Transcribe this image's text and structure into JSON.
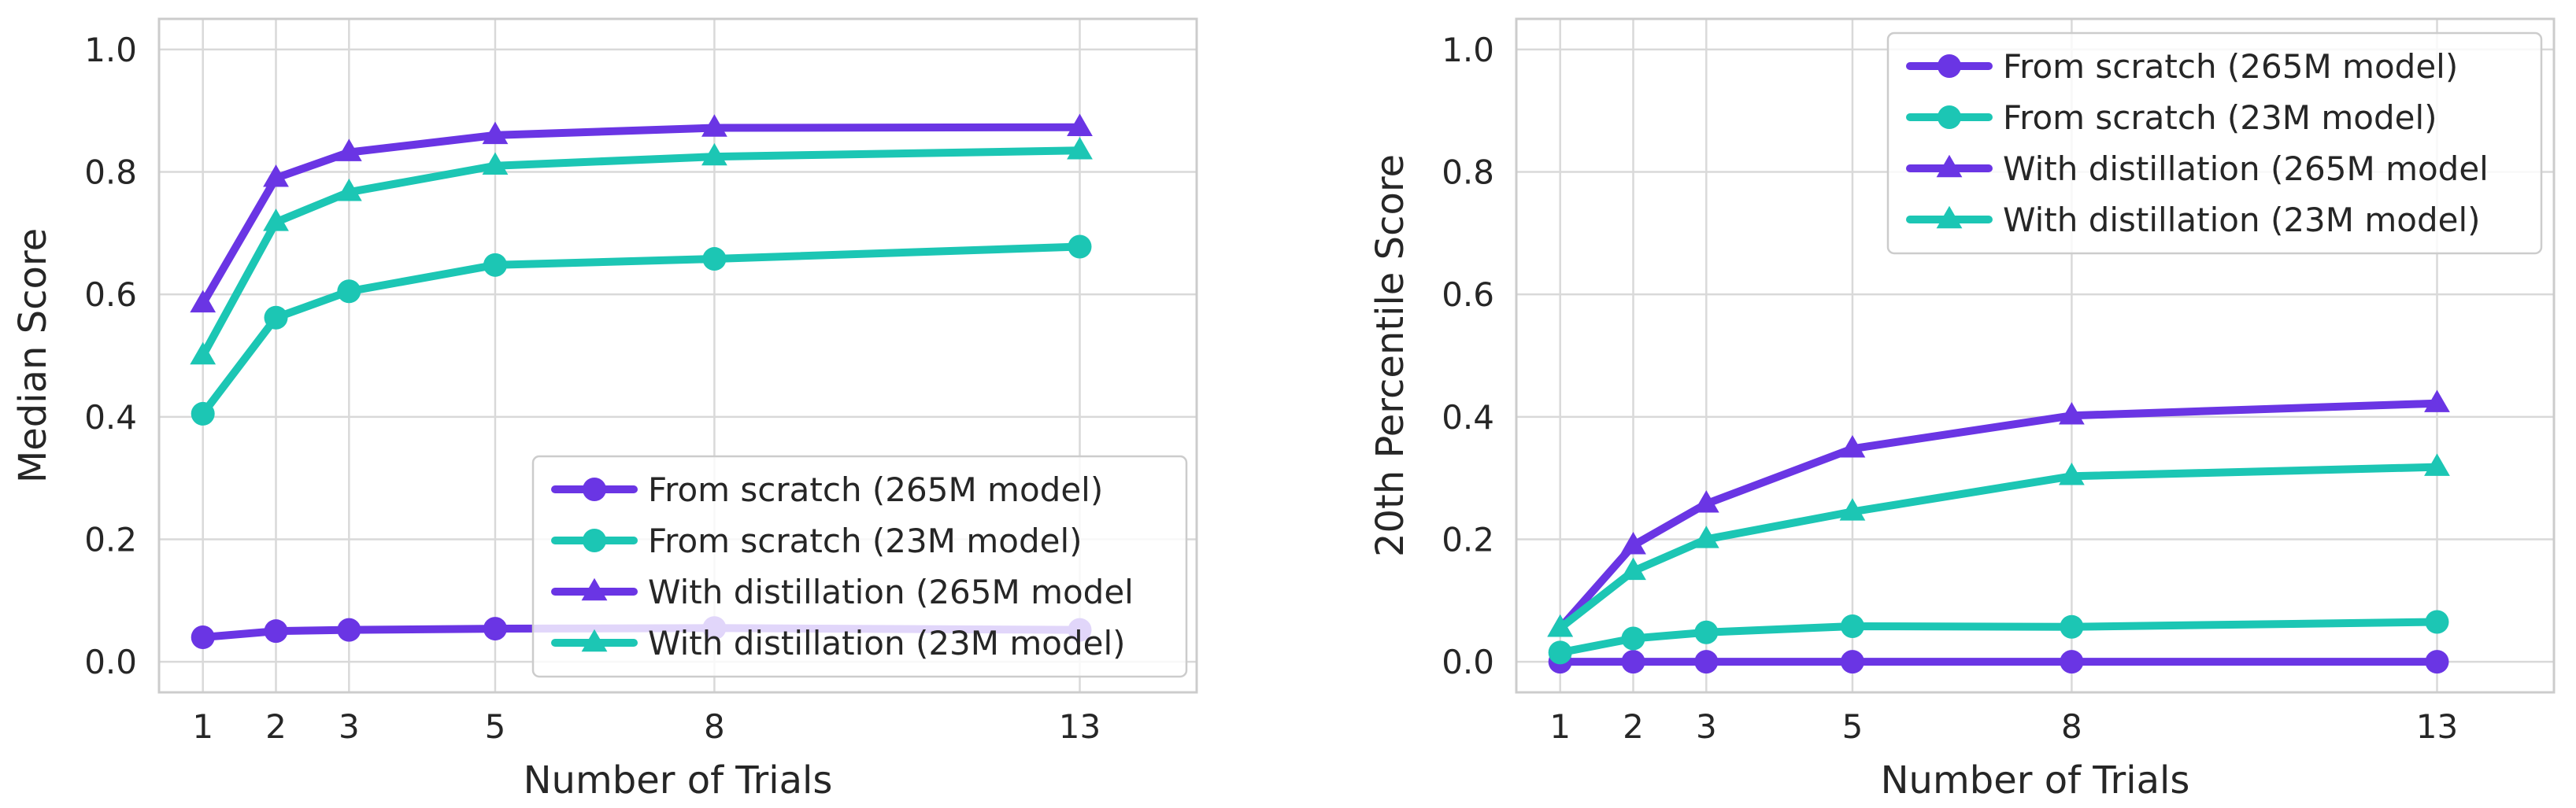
{
  "colors": {
    "purple": "#6a35e4",
    "teal": "#1cc6b4",
    "grid": "#d9d9d9",
    "frame": "#cccccc"
  },
  "chart_data": [
    {
      "type": "line",
      "xlabel": "Number of Trials",
      "ylabel": "Median Score",
      "x": [
        1,
        2,
        3,
        5,
        8,
        13
      ],
      "xticks": [
        1,
        2,
        3,
        5,
        8,
        13
      ],
      "yticks": [
        0.0,
        0.2,
        0.4,
        0.6,
        0.8,
        1.0
      ],
      "ytick_labels": [
        "0.0",
        "0.2",
        "0.4",
        "0.6",
        "0.8",
        "1.0"
      ],
      "xlim": [
        0.4,
        14.6
      ],
      "ylim": [
        -0.05,
        1.05
      ],
      "grid": true,
      "legend": "lower right",
      "series": [
        {
          "name": "From scratch (265M model)",
          "color": "purple",
          "marker": "circle",
          "values": [
            0.04,
            0.05,
            0.052,
            0.054,
            0.055,
            0.052
          ]
        },
        {
          "name": "From scratch (23M model)",
          "color": "teal",
          "marker": "circle",
          "values": [
            0.405,
            0.562,
            0.605,
            0.648,
            0.658,
            0.678
          ]
        },
        {
          "name": "With distillation (265M model",
          "color": "purple",
          "marker": "triangle",
          "values": [
            0.585,
            0.79,
            0.832,
            0.86,
            0.872,
            0.873
          ]
        },
        {
          "name": "With distillation (23M model)",
          "color": "teal",
          "marker": "triangle",
          "values": [
            0.5,
            0.718,
            0.767,
            0.81,
            0.825,
            0.835
          ]
        }
      ]
    },
    {
      "type": "line",
      "xlabel": "Number of Trials",
      "ylabel": "20th Percentile Score",
      "x": [
        1,
        2,
        3,
        5,
        8,
        13
      ],
      "xticks": [
        1,
        2,
        3,
        5,
        8,
        13
      ],
      "yticks": [
        0.0,
        0.2,
        0.4,
        0.6,
        0.8,
        1.0
      ],
      "ytick_labels": [
        "0.0",
        "0.2",
        "0.4",
        "0.6",
        "0.8",
        "1.0"
      ],
      "xlim": [
        0.4,
        14.6
      ],
      "ylim": [
        -0.05,
        1.05
      ],
      "grid": true,
      "legend": "upper right",
      "series": [
        {
          "name": "From scratch (265M model)",
          "color": "purple",
          "marker": "circle",
          "values": [
            0.0,
            0.0,
            0.0,
            0.0,
            0.0,
            0.0
          ]
        },
        {
          "name": "From scratch (23M model)",
          "color": "teal",
          "marker": "circle",
          "values": [
            0.015,
            0.038,
            0.048,
            0.058,
            0.057,
            0.065
          ]
        },
        {
          "name": "With distillation (265M model",
          "color": "purple",
          "marker": "triangle",
          "values": [
            0.055,
            0.19,
            0.258,
            0.348,
            0.402,
            0.422
          ]
        },
        {
          "name": "With distillation (23M model)",
          "color": "teal",
          "marker": "triangle",
          "values": [
            0.055,
            0.148,
            0.2,
            0.245,
            0.303,
            0.318
          ]
        }
      ]
    }
  ]
}
